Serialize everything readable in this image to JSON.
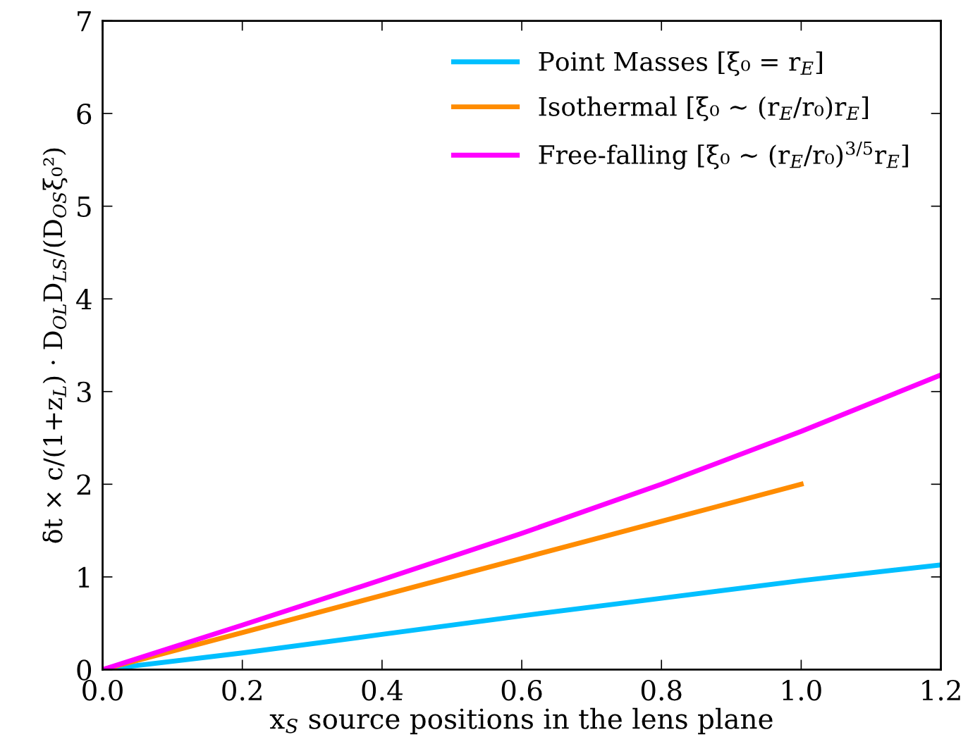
{
  "chart_data": {
    "type": "line",
    "xlabel": "x$_{S}$ source positions in the lens plane",
    "ylabel": "δt × c/(1+z$_{L}$) · D$_{OL}$D$_{LS}$/(D$_{OS}$ξ₀²)",
    "xlim": [
      0,
      1.2
    ],
    "ylim": [
      0,
      7
    ],
    "xticks": [
      {
        "value": 0,
        "label": "0.0"
      },
      {
        "value": 0.2,
        "label": "0.2"
      },
      {
        "value": 0.4,
        "label": "0.4"
      },
      {
        "value": 0.6,
        "label": "0.6"
      },
      {
        "value": 0.8,
        "label": "0.8"
      },
      {
        "value": 1.0,
        "label": "1.0"
      },
      {
        "value": 1.2,
        "label": "1.2"
      }
    ],
    "yticks": [
      0,
      1,
      2,
      3,
      4,
      5,
      6,
      7
    ],
    "grid": false,
    "legend": "top right",
    "line_style": "solid",
    "marker": "none",
    "series": [
      {
        "name": "Point Masses [ξ₀ = r$_{E}$]",
        "color": "#00bfff",
        "x": [
          0,
          0.2,
          0.4,
          0.6,
          0.8,
          1.0,
          1.2
        ],
        "values": [
          0,
          0.18,
          0.38,
          0.58,
          0.77,
          0.96,
          1.13
        ]
      },
      {
        "name": "Isothermal [ξ₀ ∼ (r$_{E}$/r₀)r$_{E}$]",
        "color": "#ff8c00",
        "x": [
          0,
          0.2,
          0.4,
          0.6,
          0.8,
          1.0
        ],
        "values": [
          0,
          0.4,
          0.8,
          1.2,
          1.6,
          2.0
        ]
      },
      {
        "name": "Free-falling [ξ₀ ∼ (r$_{E}$/r₀)$^{3/5}$r$_{E}$]",
        "color": "#ff00ff",
        "x": [
          0,
          0.2,
          0.4,
          0.6,
          0.8,
          1.0,
          1.2
        ],
        "values": [
          0,
          0.48,
          0.97,
          1.47,
          2.0,
          2.57,
          3.18
        ]
      }
    ]
  }
}
